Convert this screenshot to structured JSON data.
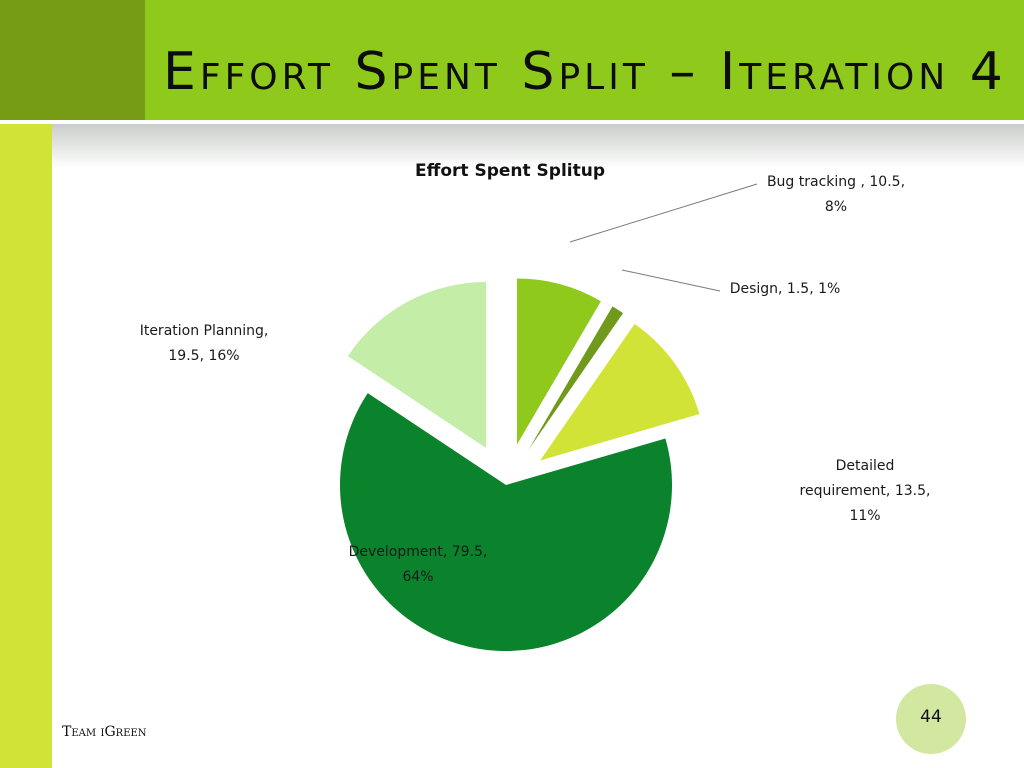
{
  "slide": {
    "title": "Effort Spent Split – Iteration 4",
    "footer": "Team iGreen",
    "page_number": "44"
  },
  "colors": {
    "title_bar": "#8fc91b",
    "title_corner": "#759c14",
    "left_strip": "#d2e338"
  },
  "chart_data": {
    "type": "pie",
    "title": "Effort Spent Splitup",
    "exploded": true,
    "slices": [
      {
        "label": "Bug tracking ",
        "value": 10.5,
        "percent": "8%",
        "color": "#8fc91b",
        "label_lines": [
          "Bug tracking , 10.5,",
          "8%"
        ]
      },
      {
        "label": "Design",
        "value": 1.5,
        "percent": "1%",
        "color": "#6f9a1c",
        "label_lines": [
          "Design, 1.5, 1%"
        ]
      },
      {
        "label": "Detailed requirement",
        "value": 13.5,
        "percent": "11%",
        "color": "#d2e338",
        "label_lines": [
          "Detailed",
          "requirement, 13.5,",
          "11%"
        ]
      },
      {
        "label": "Development",
        "value": 79.5,
        "percent": "64%",
        "color": "#0b822c",
        "label_lines": [
          "Development, 79.5,",
          "64%"
        ]
      },
      {
        "label": "Iteration Planning",
        "value": 19.5,
        "percent": "16%",
        "color": "#c4eda8",
        "label_lines": [
          "Iteration Planning,",
          "19.5, 16%"
        ]
      }
    ]
  }
}
